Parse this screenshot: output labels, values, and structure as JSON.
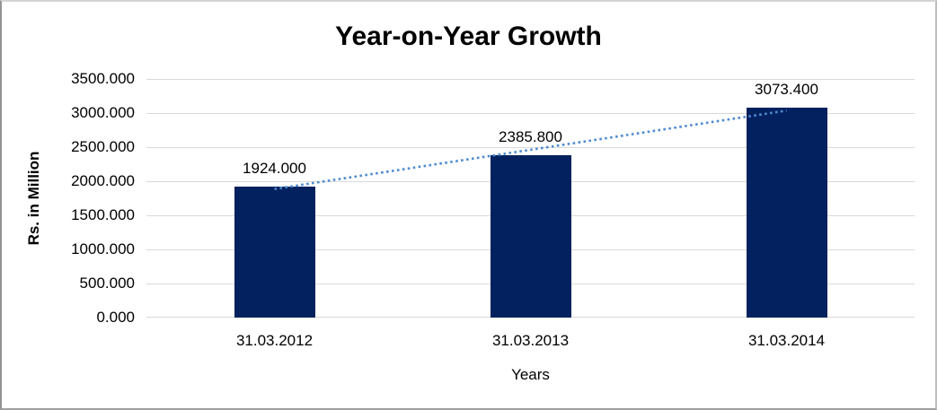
{
  "chart_data": {
    "type": "bar",
    "title": "Year-on-Year Growth",
    "xlabel": "Years",
    "ylabel": "Rs. in Million",
    "categories": [
      "31.03.2012",
      "31.03.2013",
      "31.03.2014"
    ],
    "values": [
      1924.0,
      2385.8,
      3073.4
    ],
    "data_labels": [
      "1924.000",
      "2385.800",
      "3073.400"
    ],
    "y_ticks": [
      "0.000",
      "500.000",
      "1000.000",
      "1500.000",
      "2000.000",
      "2500.000",
      "3000.000",
      "3500.000"
    ],
    "ylim": [
      0,
      3500
    ],
    "grid": true,
    "legend": "none",
    "bar_color": "#02215E",
    "gridline_color": "#D9D9D9",
    "trendline": {
      "type": "linear",
      "style": "dotted",
      "color": "#4E8BD3"
    }
  }
}
